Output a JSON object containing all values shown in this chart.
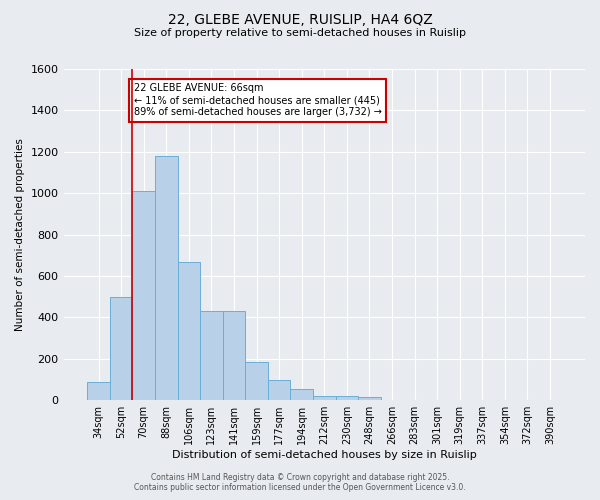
{
  "title_line1": "22, GLEBE AVENUE, RUISLIP, HA4 6QZ",
  "title_line2": "Size of property relative to semi-detached houses in Ruislip",
  "xlabel": "Distribution of semi-detached houses by size in Ruislip",
  "ylabel": "Number of semi-detached properties",
  "categories": [
    "34sqm",
    "52sqm",
    "70sqm",
    "88sqm",
    "106sqm",
    "123sqm",
    "141sqm",
    "159sqm",
    "177sqm",
    "194sqm",
    "212sqm",
    "230sqm",
    "248sqm",
    "266sqm",
    "283sqm",
    "301sqm",
    "319sqm",
    "337sqm",
    "354sqm",
    "372sqm",
    "390sqm"
  ],
  "values": [
    90,
    500,
    1010,
    1180,
    670,
    430,
    430,
    185,
    100,
    55,
    20,
    20,
    15,
    0,
    0,
    0,
    0,
    0,
    0,
    0,
    0
  ],
  "bar_color": "#b8d0e8",
  "bar_edge_color": "#6aaed6",
  "annotation_text": "22 GLEBE AVENUE: 66sqm\n← 11% of semi-detached houses are smaller (445)\n89% of semi-detached houses are larger (3,732) →",
  "annotation_box_color": "#ffffff",
  "annotation_edge_color": "#cc0000",
  "ylim": [
    0,
    1600
  ],
  "yticks": [
    0,
    200,
    400,
    600,
    800,
    1000,
    1200,
    1400,
    1600
  ],
  "footer_line1": "Contains HM Land Registry data © Crown copyright and database right 2025.",
  "footer_line2": "Contains public sector information licensed under the Open Government Licence v3.0.",
  "background_color": "#e8ecf0",
  "plot_background": "#e8ecf0",
  "grid_color": "#ffffff",
  "redline_color": "#cc0000",
  "redline_x": 1.5
}
